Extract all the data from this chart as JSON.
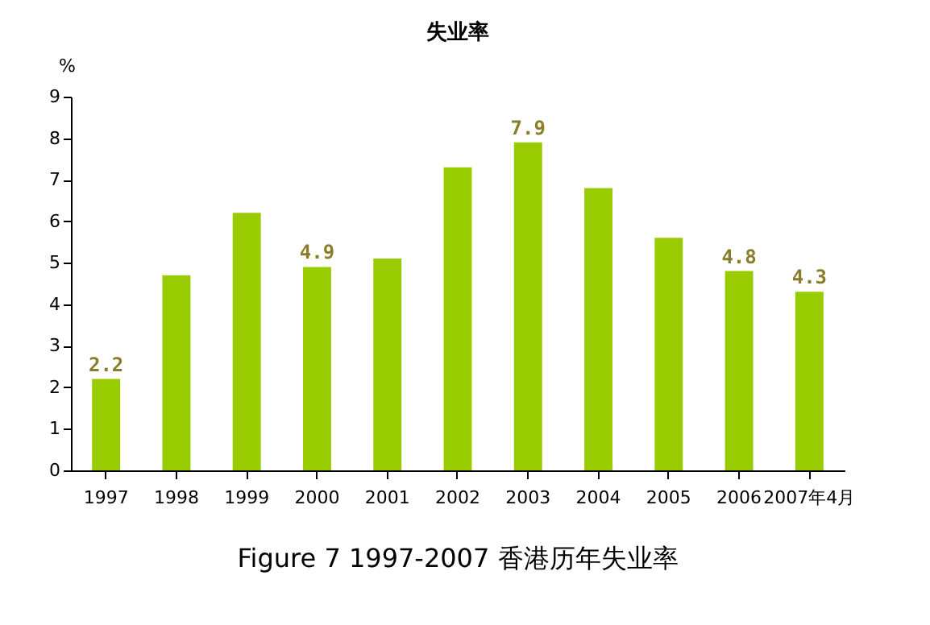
{
  "chart_data": {
    "type": "bar",
    "title": "失业率",
    "ylabel": "%",
    "categories": [
      "1997",
      "1998",
      "1999",
      "2000",
      "2001",
      "2002",
      "2003",
      "2004",
      "2005",
      "2006",
      "2007年4月"
    ],
    "values": [
      2.2,
      4.7,
      6.2,
      4.9,
      5.1,
      7.3,
      7.9,
      6.8,
      5.6,
      4.8,
      4.3
    ],
    "value_labels": [
      "2.2",
      null,
      null,
      "4.9",
      null,
      null,
      "7.9",
      null,
      null,
      "4.8",
      "4.3"
    ],
    "color": "#99cc00",
    "ylim": [
      0,
      9
    ],
    "yticks": [
      0,
      1,
      2,
      3,
      4,
      5,
      6,
      7,
      8,
      9
    ],
    "grid": false,
    "annotations": [
      "Figure 7 1997-2007  香港历年失业率"
    ]
  }
}
